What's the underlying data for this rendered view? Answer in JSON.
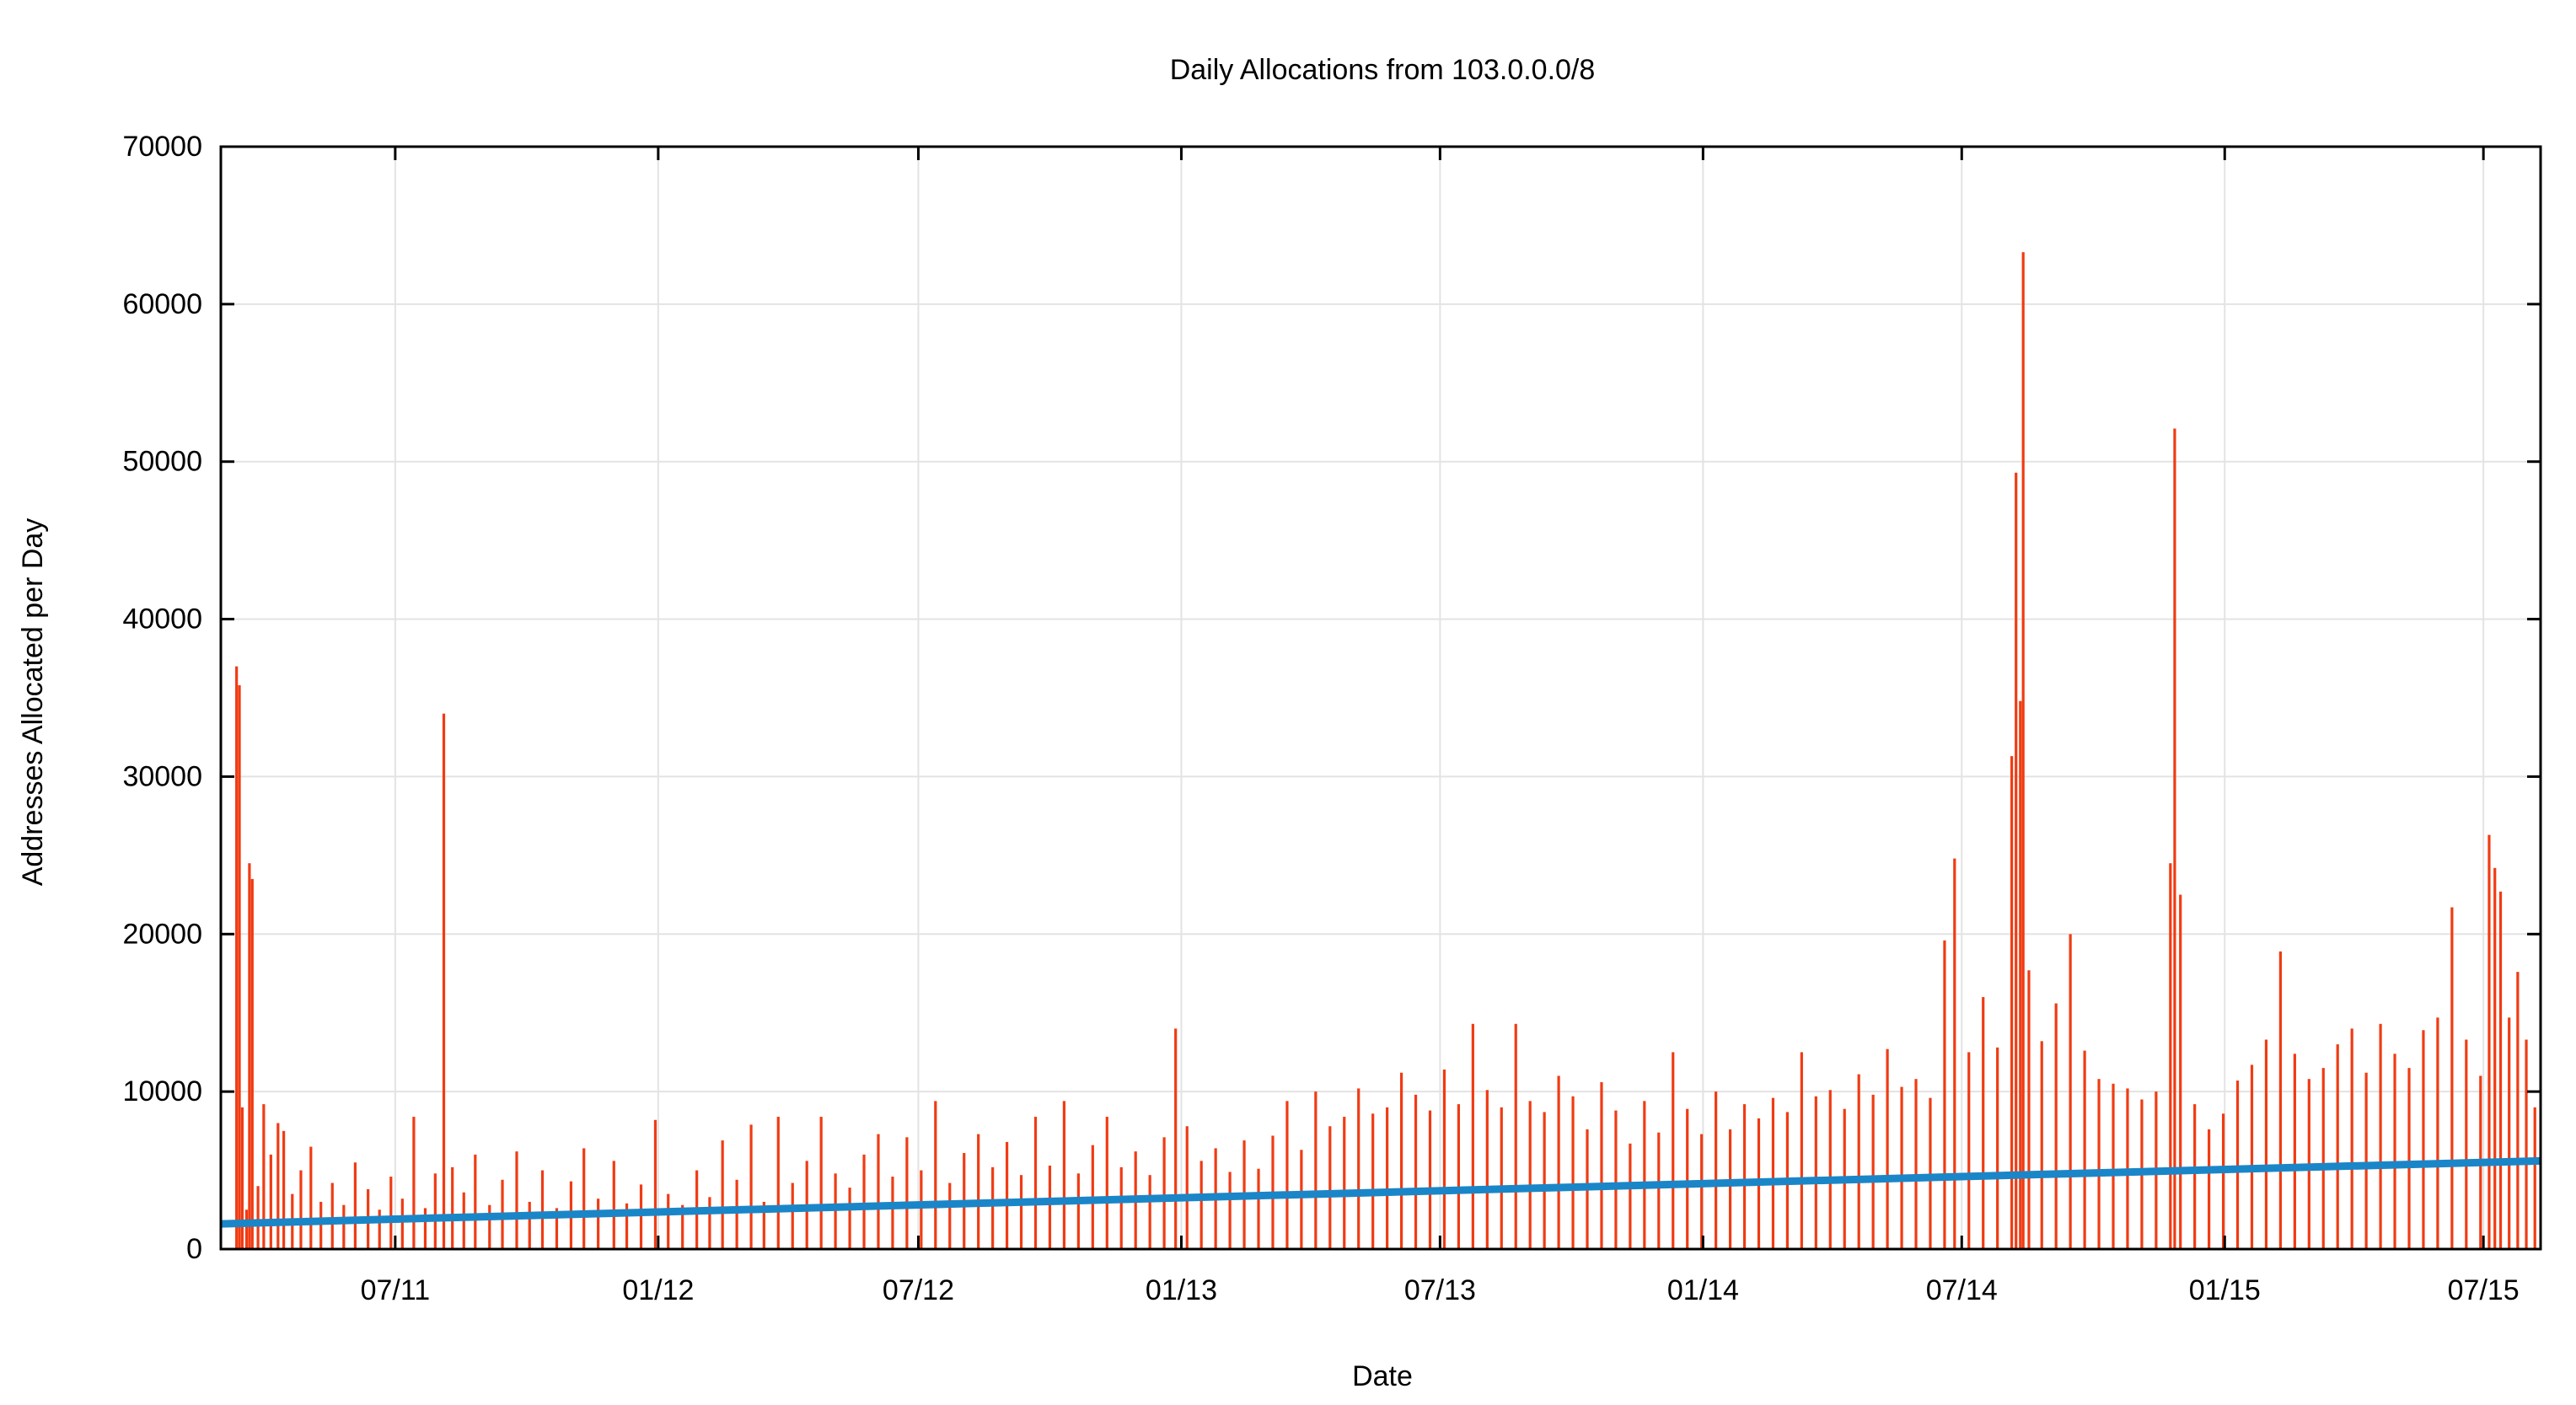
{
  "chart_data": {
    "type": "bar",
    "title": "Daily Allocations from 103.0.0.0/8",
    "xlabel": "Date",
    "ylabel": "Addresses Allocated per Day",
    "ylim": [
      0,
      70000
    ],
    "xlim": [
      "2011-03-01",
      "2015-08-10"
    ],
    "x_ticks": [
      {
        "date": "2011-07-01",
        "label": "07/11"
      },
      {
        "date": "2012-01-01",
        "label": "01/12"
      },
      {
        "date": "2012-07-01",
        "label": "07/12"
      },
      {
        "date": "2013-01-01",
        "label": "01/13"
      },
      {
        "date": "2013-07-01",
        "label": "07/13"
      },
      {
        "date": "2014-01-01",
        "label": "01/14"
      },
      {
        "date": "2014-07-01",
        "label": "07/14"
      },
      {
        "date": "2015-01-01",
        "label": "01/15"
      },
      {
        "date": "2015-07-01",
        "label": "07/15"
      }
    ],
    "y_ticks": [
      0,
      10000,
      20000,
      30000,
      40000,
      50000,
      60000,
      70000
    ],
    "grid": true,
    "series": [
      {
        "type": "bar",
        "color": "#f03b13",
        "points": [
          [
            "2011-03-12",
            37000
          ],
          [
            "2011-03-14",
            35800
          ],
          [
            "2011-03-16",
            9000
          ],
          [
            "2011-03-19",
            2500
          ],
          [
            "2011-03-21",
            24500
          ],
          [
            "2011-03-23",
            23500
          ],
          [
            "2011-03-27",
            4000
          ],
          [
            "2011-03-31",
            9200
          ],
          [
            "2011-04-05",
            6000
          ],
          [
            "2011-04-10",
            8000
          ],
          [
            "2011-04-14",
            7500
          ],
          [
            "2011-04-20",
            3500
          ],
          [
            "2011-04-26",
            5000
          ],
          [
            "2011-05-03",
            6500
          ],
          [
            "2011-05-10",
            3000
          ],
          [
            "2011-05-18",
            4200
          ],
          [
            "2011-05-26",
            2800
          ],
          [
            "2011-06-03",
            5500
          ],
          [
            "2011-06-12",
            3800
          ],
          [
            "2011-06-20",
            2500
          ],
          [
            "2011-06-28",
            4600
          ],
          [
            "2011-07-06",
            3200
          ],
          [
            "2011-07-14",
            8400
          ],
          [
            "2011-07-22",
            2600
          ],
          [
            "2011-07-29",
            4800
          ],
          [
            "2011-08-04",
            34000
          ],
          [
            "2011-08-10",
            5200
          ],
          [
            "2011-08-18",
            3600
          ],
          [
            "2011-08-26",
            6000
          ],
          [
            "2011-09-05",
            2800
          ],
          [
            "2011-09-14",
            4400
          ],
          [
            "2011-09-24",
            6200
          ],
          [
            "2011-10-03",
            3000
          ],
          [
            "2011-10-12",
            5000
          ],
          [
            "2011-10-22",
            2600
          ],
          [
            "2011-11-01",
            4300
          ],
          [
            "2011-11-10",
            6400
          ],
          [
            "2011-11-20",
            3200
          ],
          [
            "2011-12-01",
            5600
          ],
          [
            "2011-12-10",
            2900
          ],
          [
            "2011-12-20",
            4100
          ],
          [
            "2011-12-30",
            8200
          ],
          [
            "2012-01-08",
            3500
          ],
          [
            "2012-01-18",
            2800
          ],
          [
            "2012-01-28",
            5000
          ],
          [
            "2012-02-06",
            3300
          ],
          [
            "2012-02-15",
            6900
          ],
          [
            "2012-02-25",
            4400
          ],
          [
            "2012-03-06",
            7900
          ],
          [
            "2012-03-15",
            3000
          ],
          [
            "2012-03-25",
            8400
          ],
          [
            "2012-04-04",
            4200
          ],
          [
            "2012-04-14",
            5600
          ],
          [
            "2012-04-24",
            8400
          ],
          [
            "2012-05-04",
            4800
          ],
          [
            "2012-05-14",
            3900
          ],
          [
            "2012-05-24",
            6000
          ],
          [
            "2012-06-03",
            7300
          ],
          [
            "2012-06-13",
            4600
          ],
          [
            "2012-06-23",
            7100
          ],
          [
            "2012-07-03",
            5000
          ],
          [
            "2012-07-13",
            9400
          ],
          [
            "2012-07-23",
            4200
          ],
          [
            "2012-08-02",
            6100
          ],
          [
            "2012-08-12",
            7300
          ],
          [
            "2012-08-22",
            5200
          ],
          [
            "2012-09-01",
            6800
          ],
          [
            "2012-09-11",
            4700
          ],
          [
            "2012-09-21",
            8400
          ],
          [
            "2012-10-01",
            5300
          ],
          [
            "2012-10-11",
            9400
          ],
          [
            "2012-10-21",
            4800
          ],
          [
            "2012-10-31",
            6600
          ],
          [
            "2012-11-10",
            8400
          ],
          [
            "2012-11-20",
            5200
          ],
          [
            "2012-11-30",
            6200
          ],
          [
            "2012-12-10",
            4700
          ],
          [
            "2012-12-20",
            7100
          ],
          [
            "2012-12-28",
            14000
          ],
          [
            "2013-01-05",
            7800
          ],
          [
            "2013-01-15",
            5600
          ],
          [
            "2013-01-25",
            6400
          ],
          [
            "2013-02-04",
            4900
          ],
          [
            "2013-02-14",
            6900
          ],
          [
            "2013-02-24",
            5100
          ],
          [
            "2013-03-06",
            7200
          ],
          [
            "2013-03-16",
            9400
          ],
          [
            "2013-03-26",
            6300
          ],
          [
            "2013-04-05",
            10000
          ],
          [
            "2013-04-15",
            7800
          ],
          [
            "2013-04-25",
            8400
          ],
          [
            "2013-05-05",
            10200
          ],
          [
            "2013-05-15",
            8600
          ],
          [
            "2013-05-25",
            9000
          ],
          [
            "2013-06-04",
            11200
          ],
          [
            "2013-06-14",
            9800
          ],
          [
            "2013-06-24",
            8800
          ],
          [
            "2013-07-04",
            11400
          ],
          [
            "2013-07-14",
            9200
          ],
          [
            "2013-07-24",
            14300
          ],
          [
            "2013-08-03",
            10100
          ],
          [
            "2013-08-13",
            9000
          ],
          [
            "2013-08-23",
            14300
          ],
          [
            "2013-09-02",
            9400
          ],
          [
            "2013-09-12",
            8700
          ],
          [
            "2013-09-22",
            11000
          ],
          [
            "2013-10-02",
            9700
          ],
          [
            "2013-10-12",
            7600
          ],
          [
            "2013-10-22",
            10600
          ],
          [
            "2013-11-01",
            8800
          ],
          [
            "2013-11-11",
            6700
          ],
          [
            "2013-11-21",
            9400
          ],
          [
            "2013-12-01",
            7400
          ],
          [
            "2013-12-11",
            12500
          ],
          [
            "2013-12-21",
            8900
          ],
          [
            "2013-12-31",
            7300
          ],
          [
            "2014-01-10",
            10000
          ],
          [
            "2014-01-20",
            7600
          ],
          [
            "2014-01-30",
            9200
          ],
          [
            "2014-02-09",
            8300
          ],
          [
            "2014-02-19",
            9600
          ],
          [
            "2014-03-01",
            8700
          ],
          [
            "2014-03-11",
            12500
          ],
          [
            "2014-03-21",
            9700
          ],
          [
            "2014-03-31",
            10100
          ],
          [
            "2014-04-10",
            8900
          ],
          [
            "2014-04-20",
            11100
          ],
          [
            "2014-04-30",
            9800
          ],
          [
            "2014-05-10",
            12700
          ],
          [
            "2014-05-20",
            10300
          ],
          [
            "2014-05-30",
            10800
          ],
          [
            "2014-06-09",
            9600
          ],
          [
            "2014-06-19",
            19600
          ],
          [
            "2014-06-26",
            24800
          ],
          [
            "2014-07-06",
            12500
          ],
          [
            "2014-07-16",
            16000
          ],
          [
            "2014-07-26",
            12800
          ],
          [
            "2014-08-05",
            31300
          ],
          [
            "2014-08-08",
            49300
          ],
          [
            "2014-08-11",
            34800
          ],
          [
            "2014-08-13",
            63300
          ],
          [
            "2014-08-17",
            17700
          ],
          [
            "2014-08-26",
            13200
          ],
          [
            "2014-09-05",
            15600
          ],
          [
            "2014-09-15",
            20000
          ],
          [
            "2014-09-25",
            12600
          ],
          [
            "2014-10-05",
            10800
          ],
          [
            "2014-10-15",
            10500
          ],
          [
            "2014-10-25",
            10200
          ],
          [
            "2014-11-04",
            9500
          ],
          [
            "2014-11-14",
            10000
          ],
          [
            "2014-11-24",
            24500
          ],
          [
            "2014-11-27",
            52100
          ],
          [
            "2014-12-01",
            22500
          ],
          [
            "2014-12-11",
            9200
          ],
          [
            "2014-12-21",
            7600
          ],
          [
            "2014-12-31",
            8600
          ],
          [
            "2015-01-10",
            10700
          ],
          [
            "2015-01-20",
            11700
          ],
          [
            "2015-01-30",
            13300
          ],
          [
            "2015-02-09",
            18900
          ],
          [
            "2015-02-19",
            12400
          ],
          [
            "2015-03-01",
            10800
          ],
          [
            "2015-03-11",
            11500
          ],
          [
            "2015-03-21",
            13000
          ],
          [
            "2015-03-31",
            14000
          ],
          [
            "2015-04-10",
            11200
          ],
          [
            "2015-04-20",
            14300
          ],
          [
            "2015-04-30",
            12400
          ],
          [
            "2015-05-10",
            11500
          ],
          [
            "2015-05-20",
            13900
          ],
          [
            "2015-05-30",
            14700
          ],
          [
            "2015-06-09",
            21700
          ],
          [
            "2015-06-19",
            13300
          ],
          [
            "2015-06-29",
            11000
          ],
          [
            "2015-07-05",
            26300
          ],
          [
            "2015-07-09",
            24200
          ],
          [
            "2015-07-13",
            22700
          ],
          [
            "2015-07-19",
            14700
          ],
          [
            "2015-07-25",
            17600
          ],
          [
            "2015-07-31",
            13300
          ],
          [
            "2015-08-06",
            9000
          ]
        ]
      },
      {
        "type": "line",
        "color": "#1a86c8",
        "points": [
          [
            "2011-03-01",
            1600
          ],
          [
            "2015-08-10",
            5600
          ]
        ]
      }
    ]
  }
}
